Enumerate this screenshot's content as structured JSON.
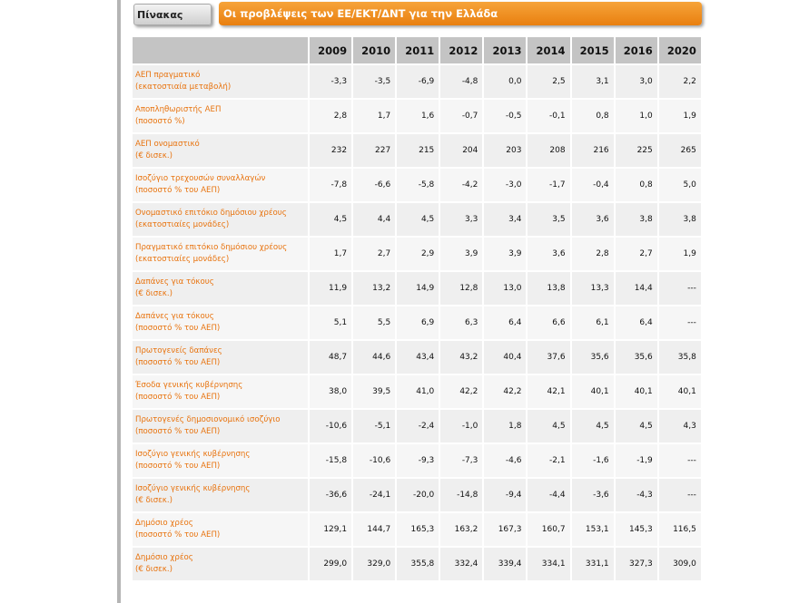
{
  "header": {
    "tag_label": "Πίνακας",
    "title": "Οι προβλέψεις των ΕΕ/ΕΚΤ/ΔΝΤ για την Ελλάδα"
  },
  "table": {
    "years": [
      "2009",
      "2010",
      "2011",
      "2012",
      "2013",
      "2014",
      "2015",
      "2016",
      "2020"
    ],
    "rows": [
      {
        "line1": "ΑΕΠ πραγματικό",
        "line2": "(εκατοστιαία μεταβολή)",
        "values": [
          "-3,3",
          "-3,5",
          "-6,9",
          "-4,8",
          "0,0",
          "2,5",
          "3,1",
          "3,0",
          "2,2"
        ]
      },
      {
        "line1": "Αποπληθωριστής ΑΕΠ",
        "line2": "(ποσοστό %)",
        "values": [
          "2,8",
          "1,7",
          "1,6",
          "-0,7",
          "-0,5",
          "-0,1",
          "0,8",
          "1,0",
          "1,9"
        ]
      },
      {
        "line1": "ΑΕΠ ονομαστικό",
        "line2": "(€ δισεκ.)",
        "values": [
          "232",
          "227",
          "215",
          "204",
          "203",
          "208",
          "216",
          "225",
          "265"
        ]
      },
      {
        "line1": "Ισοζύγιο τρεχουσών συναλλαγών",
        "line2": "(ποσοστό % του ΑΕΠ)",
        "values": [
          "-7,8",
          "-6,6",
          "-5,8",
          "-4,2",
          "-3,0",
          "-1,7",
          "-0,4",
          "0,8",
          "5,0"
        ]
      },
      {
        "line1": "Ονομαστικό επιτόκιο δημόσιου χρέους",
        "line2": "(εκατοστιαίες μονάδες)",
        "values": [
          "4,5",
          "4,4",
          "4,5",
          "3,3",
          "3,4",
          "3,5",
          "3,6",
          "3,8",
          "3,8"
        ]
      },
      {
        "line1": "Πραγματικό επιτόκιο δημόσιου χρέους",
        "line2": "(εκατοστιαίες μονάδες)",
        "values": [
          "1,7",
          "2,7",
          "2,9",
          "3,9",
          "3,9",
          "3,6",
          "2,8",
          "2,7",
          "1,9"
        ]
      },
      {
        "line1": "Δαπάνες για τόκους",
        "line2": "(€ δισεκ.)",
        "values": [
          "11,9",
          "13,2",
          "14,9",
          "12,8",
          "13,0",
          "13,8",
          "13,3",
          "14,4",
          "---"
        ]
      },
      {
        "line1": "Δαπάνες για τόκους",
        "line2": "(ποσοστό % του ΑΕΠ)",
        "values": [
          "5,1",
          "5,5",
          "6,9",
          "6,3",
          "6,4",
          "6,6",
          "6,1",
          "6,4",
          "---"
        ]
      },
      {
        "line1": "Πρωτογενείς δαπάνες",
        "line2": "(ποσοστό % του ΑΕΠ)",
        "values": [
          "48,7",
          "44,6",
          "43,4",
          "43,2",
          "40,4",
          "37,6",
          "35,6",
          "35,6",
          "35,8"
        ]
      },
      {
        "line1": "Έσοδα γενικής κυβέρνησης",
        "line2": "(ποσοστό % του ΑΕΠ)",
        "values": [
          "38,0",
          "39,5",
          "41,0",
          "42,2",
          "42,2",
          "42,1",
          "40,1",
          "40,1",
          "40,1"
        ]
      },
      {
        "line1": "Πρωτογενές δημοσιονομικό ισοζύγιο",
        "line2": "(ποσοστό % του ΑΕΠ)",
        "values": [
          "-10,6",
          "-5,1",
          "-2,4",
          "-1,0",
          "1,8",
          "4,5",
          "4,5",
          "4,5",
          "4,3"
        ]
      },
      {
        "line1": "Ισοζύγιο γενικής κυβέρνησης",
        "line2": "(ποσοστό % του ΑΕΠ)",
        "values": [
          "-15,8",
          "-10,6",
          "-9,3",
          "-7,3",
          "-4,6",
          "-2,1",
          "-1,6",
          "-1,9",
          "---"
        ]
      },
      {
        "line1": "Ισοζύγιο γενικής κυβέρνησης",
        "line2": "(€ δισεκ.)",
        "values": [
          "-36,6",
          "-24,1",
          "-20,0",
          "-14,8",
          "-9,4",
          "-4,4",
          "-3,6",
          "-4,3",
          "---"
        ]
      },
      {
        "line1": "Δημόσιο χρέος",
        "line2": "(ποσοστό % του ΑΕΠ)",
        "values": [
          "129,1",
          "144,7",
          "165,3",
          "163,2",
          "167,3",
          "160,7",
          "153,1",
          "145,3",
          "116,5"
        ]
      },
      {
        "line1": "Δημόσιο χρέος",
        "line2": "(€ δισεκ.)",
        "values": [
          "299,0",
          "329,0",
          "355,8",
          "332,4",
          "339,4",
          "334,1",
          "331,1",
          "327,3",
          "309,0"
        ]
      }
    ]
  }
}
